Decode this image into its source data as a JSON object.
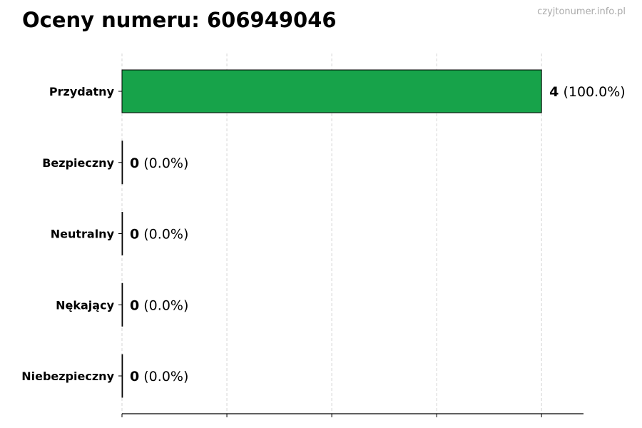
{
  "title": "Oceny numeru: 606949046",
  "watermark": "czyjtonumer.info.pl",
  "chart_data": {
    "type": "bar",
    "orientation": "horizontal",
    "title": "Oceny numeru: 606949046",
    "categories": [
      "Przydatny",
      "Bezpieczny",
      "Neutralny",
      "Nękający",
      "Niebezpieczny"
    ],
    "values": [
      4,
      0,
      0,
      0,
      0
    ],
    "labels": [
      {
        "count": "4",
        "pct": "(100.0%)"
      },
      {
        "count": "0",
        "pct": "(0.0%)"
      },
      {
        "count": "0",
        "pct": "(0.0%)"
      },
      {
        "count": "0",
        "pct": "(0.0%)"
      },
      {
        "count": "0",
        "pct": "(0.0%)"
      }
    ],
    "xlim": [
      0,
      4.4
    ],
    "xticks": [
      0,
      1,
      2,
      3,
      4
    ],
    "xtick_labels_shown": false,
    "grid": "vertical dashed",
    "bar_color": "#17a34a",
    "edge_color": "#000000"
  }
}
